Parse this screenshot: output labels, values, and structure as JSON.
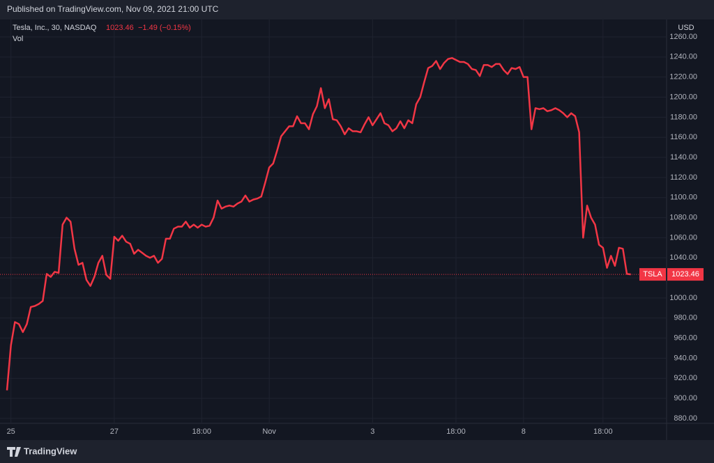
{
  "header": {
    "published": "Published on TradingView.com, Nov 09, 2021 21:00 UTC"
  },
  "footer": {
    "brand": "TradingView"
  },
  "chart_data": {
    "type": "line",
    "title": "Tesla, Inc., 30, NASDAQ",
    "change": "−1.49 (−0.15%)",
    "volume_label": "Vol",
    "currency": "USD",
    "series": [
      {
        "name": "TSLA",
        "color": "#f23645",
        "values": [
          908,
          953,
          976,
          974,
          966,
          974,
          991,
          992,
          994,
          997,
          1024,
          1021,
          1026,
          1025,
          1073,
          1080,
          1076,
          1049,
          1033,
          1035,
          1018,
          1012,
          1021,
          1035,
          1042,
          1023,
          1019,
          1061,
          1057,
          1062,
          1056,
          1054,
          1044,
          1048,
          1045,
          1042,
          1040,
          1042,
          1035,
          1039,
          1059,
          1059,
          1069,
          1071,
          1071,
          1076,
          1070,
          1073,
          1070,
          1073,
          1071,
          1072,
          1080,
          1097,
          1089,
          1091,
          1092,
          1091,
          1094,
          1096,
          1102,
          1096,
          1098,
          1099,
          1101,
          1115,
          1130,
          1134,
          1147,
          1161,
          1166,
          1171,
          1171,
          1181,
          1174,
          1174,
          1168,
          1183,
          1191,
          1209,
          1189,
          1198,
          1178,
          1177,
          1171,
          1163,
          1169,
          1166,
          1166,
          1165,
          1173,
          1180,
          1172,
          1178,
          1184,
          1174,
          1172,
          1166,
          1169,
          1176,
          1169,
          1177,
          1174,
          1193,
          1200,
          1215,
          1229,
          1231,
          1236,
          1228,
          1234,
          1238,
          1239,
          1237,
          1235,
          1235,
          1233,
          1228,
          1227,
          1221,
          1232,
          1232,
          1230,
          1233,
          1233,
          1227,
          1223,
          1229,
          1228,
          1230,
          1220,
          1220,
          1168,
          1189,
          1188,
          1189,
          1186,
          1187,
          1189,
          1187,
          1184,
          1180,
          1184,
          1181,
          1165,
          1060,
          1092,
          1080,
          1073,
          1053,
          1050,
          1030,
          1042,
          1032,
          1050,
          1049,
          1024,
          1023.46
        ]
      }
    ],
    "xlim": [
      0,
      166
    ],
    "xticks": [
      {
        "value": 1,
        "label": "25"
      },
      {
        "value": 27,
        "label": "27"
      },
      {
        "value": 49,
        "label": "18:00"
      },
      {
        "value": 66,
        "label": "Nov"
      },
      {
        "value": 92,
        "label": "3"
      },
      {
        "value": 113,
        "label": "18:00"
      },
      {
        "value": 130,
        "label": "8"
      },
      {
        "value": 150,
        "label": "18:00"
      }
    ],
    "ylim": [
      880,
      1260
    ],
    "yticks": [
      {
        "value": 880,
        "label": "880.00"
      },
      {
        "value": 900,
        "label": "900.00"
      },
      {
        "value": 920,
        "label": "920.00"
      },
      {
        "value": 940,
        "label": "940.00"
      },
      {
        "value": 960,
        "label": "960.00"
      },
      {
        "value": 980,
        "label": "980.00"
      },
      {
        "value": 1000,
        "label": "1000.00"
      },
      {
        "value": 1020,
        "label": "1020.00"
      },
      {
        "value": 1040,
        "label": "1040.00"
      },
      {
        "value": 1060,
        "label": "1060.00"
      },
      {
        "value": 1080,
        "label": "1080.00"
      },
      {
        "value": 1100,
        "label": "1100.00"
      },
      {
        "value": 1120,
        "label": "1120.00"
      },
      {
        "value": 1140,
        "label": "1140.00"
      },
      {
        "value": 1160,
        "label": "1160.00"
      },
      {
        "value": 1180,
        "label": "1180.00"
      },
      {
        "value": 1200,
        "label": "1200.00"
      },
      {
        "value": 1220,
        "label": "1220.00"
      },
      {
        "value": 1240,
        "label": "1240.00"
      },
      {
        "value": 1260,
        "label": "1260.00"
      }
    ],
    "grid": true
  }
}
